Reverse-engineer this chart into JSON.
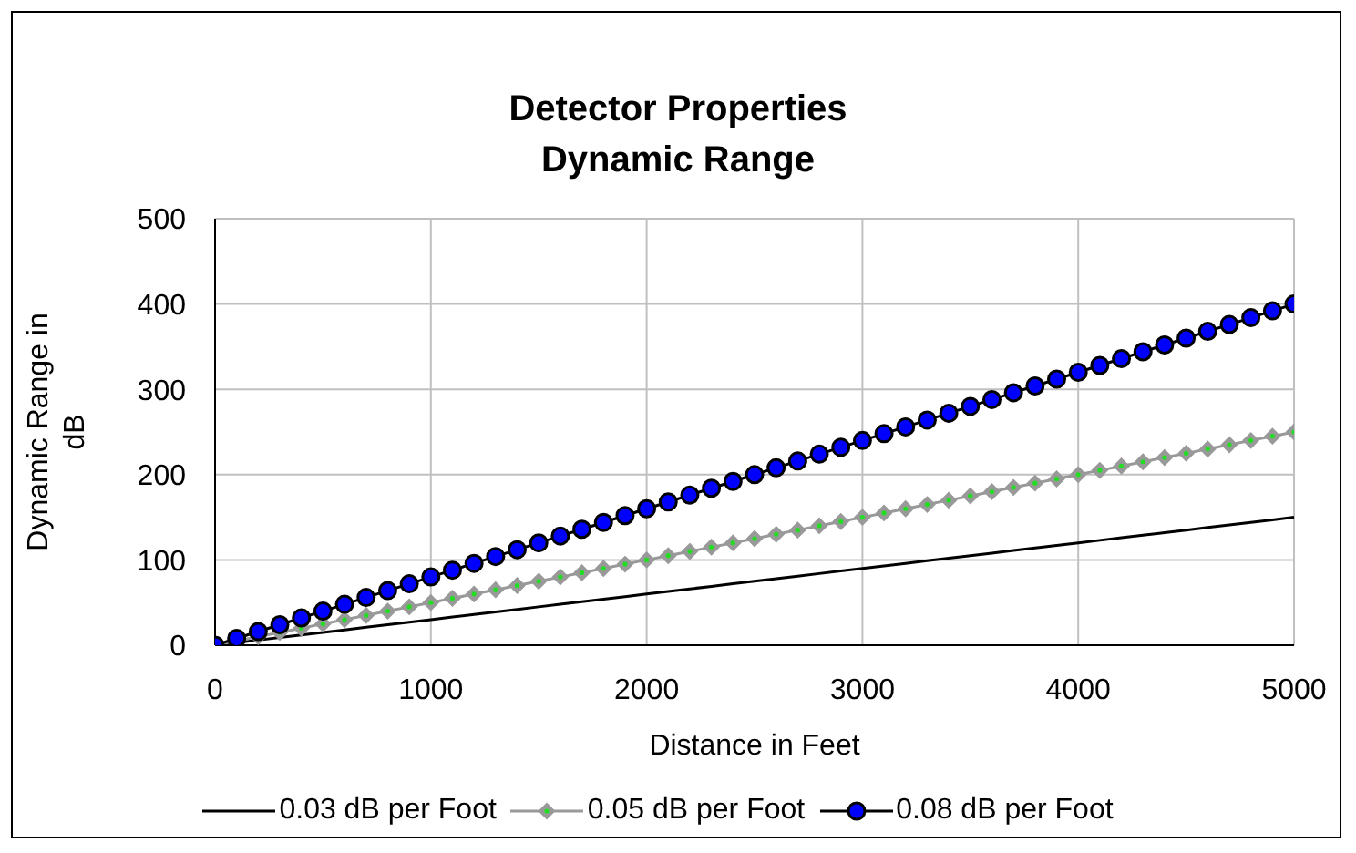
{
  "chart_data": {
    "type": "line",
    "title": "Detector Properties",
    "subtitle": "Dynamic Range",
    "xlabel": "Distance in Feet",
    "ylabel": "Dynamic Range in dB",
    "x": [
      0,
      100,
      200,
      300,
      400,
      500,
      600,
      700,
      800,
      900,
      1000,
      1100,
      1200,
      1300,
      1400,
      1500,
      1600,
      1700,
      1800,
      1900,
      2000,
      2100,
      2200,
      2300,
      2400,
      2500,
      2600,
      2700,
      2800,
      2900,
      3000,
      3100,
      3200,
      3300,
      3400,
      3500,
      3600,
      3700,
      3800,
      3900,
      4000,
      4100,
      4200,
      4300,
      4400,
      4500,
      4600,
      4700,
      4800,
      4900,
      5000
    ],
    "series": [
      {
        "name": "0.03 dB per Foot",
        "color": "#000000",
        "marker": "none",
        "values": [
          0,
          3,
          6,
          9,
          12,
          15,
          18,
          21,
          24,
          27,
          30,
          33,
          36,
          39,
          42,
          45,
          48,
          51,
          54,
          57,
          60,
          63,
          66,
          69,
          72,
          75,
          78,
          81,
          84,
          87,
          90,
          93,
          96,
          99,
          102,
          105,
          108,
          111,
          114,
          117,
          120,
          123,
          126,
          129,
          132,
          135,
          138,
          141,
          144,
          147,
          150
        ]
      },
      {
        "name": "0.05 dB per Foot",
        "color": "#999999",
        "marker": "diamond",
        "values": [
          0,
          5,
          10,
          15,
          20,
          25,
          30,
          35,
          40,
          45,
          50,
          55,
          60,
          65,
          70,
          75,
          80,
          85,
          90,
          95,
          100,
          105,
          110,
          115,
          120,
          125,
          130,
          135,
          140,
          145,
          150,
          155,
          160,
          165,
          170,
          175,
          180,
          185,
          190,
          195,
          200,
          205,
          210,
          215,
          220,
          225,
          230,
          235,
          240,
          245,
          250
        ]
      },
      {
        "name": "0.08 dB per Foot",
        "color": "#0000ff",
        "marker": "circle",
        "values": [
          0,
          8,
          16,
          24,
          32,
          40,
          48,
          56,
          64,
          72,
          80,
          88,
          96,
          104,
          112,
          120,
          128,
          136,
          144,
          152,
          160,
          168,
          176,
          184,
          192,
          200,
          208,
          216,
          224,
          232,
          240,
          248,
          256,
          264,
          272,
          280,
          288,
          296,
          304,
          312,
          320,
          328,
          336,
          344,
          352,
          360,
          368,
          376,
          384,
          392,
          400
        ]
      }
    ],
    "xlim": [
      0,
      5000
    ],
    "xticks": [
      0,
      1000,
      2000,
      3000,
      4000,
      5000
    ],
    "ylim": [
      0,
      500
    ],
    "yticks": [
      0,
      100,
      200,
      300,
      400,
      500
    ],
    "grid": true,
    "legend": "bottom"
  }
}
